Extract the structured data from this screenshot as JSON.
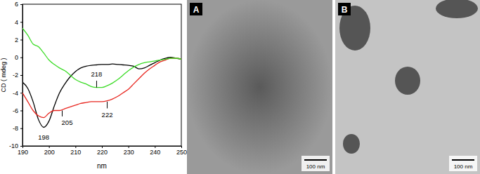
{
  "chart_data": {
    "type": "line",
    "x_label": "nm",
    "y_label": "CD ( mdeg )",
    "x": [
      190,
      192,
      194,
      196,
      198,
      200,
      202,
      204,
      206,
      208,
      210,
      212,
      214,
      216,
      218,
      220,
      222,
      224,
      226,
      228,
      230,
      232,
      234,
      236,
      238,
      240,
      242,
      244,
      246,
      248,
      250
    ],
    "series": [
      {
        "color": "#000000",
        "values": [
          -2.8,
          -3.5,
          -5.0,
          -7.0,
          -7.9,
          -7.2,
          -5.5,
          -4.0,
          -3.0,
          -2.2,
          -1.6,
          -1.2,
          -1.0,
          -0.9,
          -0.85,
          -0.8,
          -0.8,
          -0.75,
          -0.8,
          -0.85,
          -0.9,
          -1.0,
          -1.3,
          -1.2,
          -0.9,
          -0.6,
          -0.3,
          -0.1,
          0.0,
          -0.1,
          -0.2
        ]
      },
      {
        "color": "#e8261f",
        "values": [
          -4.0,
          -5.0,
          -6.0,
          -6.6,
          -6.8,
          -6.3,
          -6.0,
          -6.0,
          -5.8,
          -5.6,
          -5.4,
          -5.2,
          -5.1,
          -5.0,
          -5.0,
          -5.0,
          -4.9,
          -4.7,
          -4.4,
          -4.0,
          -3.6,
          -3.0,
          -2.4,
          -1.8,
          -1.3,
          -0.9,
          -0.5,
          -0.3,
          -0.1,
          -0.1,
          -0.2
        ]
      },
      {
        "color": "#3ddc28",
        "values": [
          3.3,
          2.5,
          1.5,
          1.2,
          0.5,
          -0.3,
          -0.8,
          -1.2,
          -1.5,
          -2.0,
          -2.5,
          -2.8,
          -3.0,
          -3.3,
          -3.4,
          -3.4,
          -3.2,
          -2.9,
          -2.5,
          -2.0,
          -1.5,
          -1.1,
          -0.8,
          -0.6,
          -0.5,
          -0.4,
          -0.3,
          -0.2,
          -0.1,
          -0.1,
          -0.2
        ]
      }
    ],
    "xlim": [
      190,
      250
    ],
    "xticks": [
      190,
      200,
      210,
      220,
      230,
      240,
      250
    ],
    "ylim": [
      -10,
      6
    ],
    "yticks": [
      -10,
      -8,
      -6,
      -4,
      -2,
      0,
      2,
      4,
      6
    ],
    "annotations": [
      {
        "text": "198",
        "x": 198,
        "y": -7.9
      },
      {
        "text": "205",
        "x": 205,
        "y": -6.0
      },
      {
        "text": "218",
        "x": 218,
        "y": -3.4
      },
      {
        "text": "222",
        "x": 222,
        "y": -5.0
      }
    ]
  },
  "images": [
    {
      "label": "A",
      "scale_bar": "100 nm"
    },
    {
      "label": "B",
      "scale_bar": "100 nm"
    }
  ]
}
